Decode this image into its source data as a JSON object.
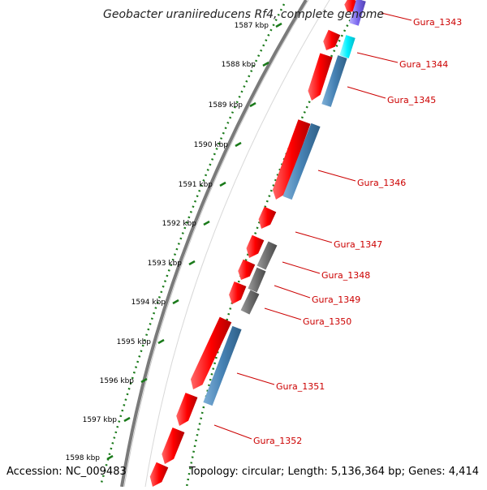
{
  "title": "Geobacter uraniireducens Rf4, complete genome",
  "accession": "Accession: NC_009483",
  "summary": "Topology: circular; Length: 5,136,364 bp; Genes: 4,414",
  "ticks": [
    "1587 kbp",
    "1588 kbp",
    "1589 kbp",
    "1590 kbp",
    "1591 kbp",
    "1592 kbp",
    "1593 kbp",
    "1594 kbp",
    "1595 kbp",
    "1596 kbp",
    "1597 kbp",
    "1598 kbp"
  ],
  "gene_labels": [
    "Gura_1343",
    "Gura_1344",
    "Gura_1345",
    "Gura_1346",
    "Gura_1347",
    "Gura_1348",
    "Gura_1349",
    "Gura_1350",
    "Gura_1351",
    "Gura_1352"
  ],
  "colors": {
    "cds": "#ff0000",
    "gene_blue": "#4682b4",
    "gene_cyan": "#00ffff",
    "gene_purple": "#6a5acd",
    "gene_gray": "#6e6e6e",
    "tick": "#1a7a1a",
    "backbone": "#808080",
    "label": "#cc0000"
  }
}
